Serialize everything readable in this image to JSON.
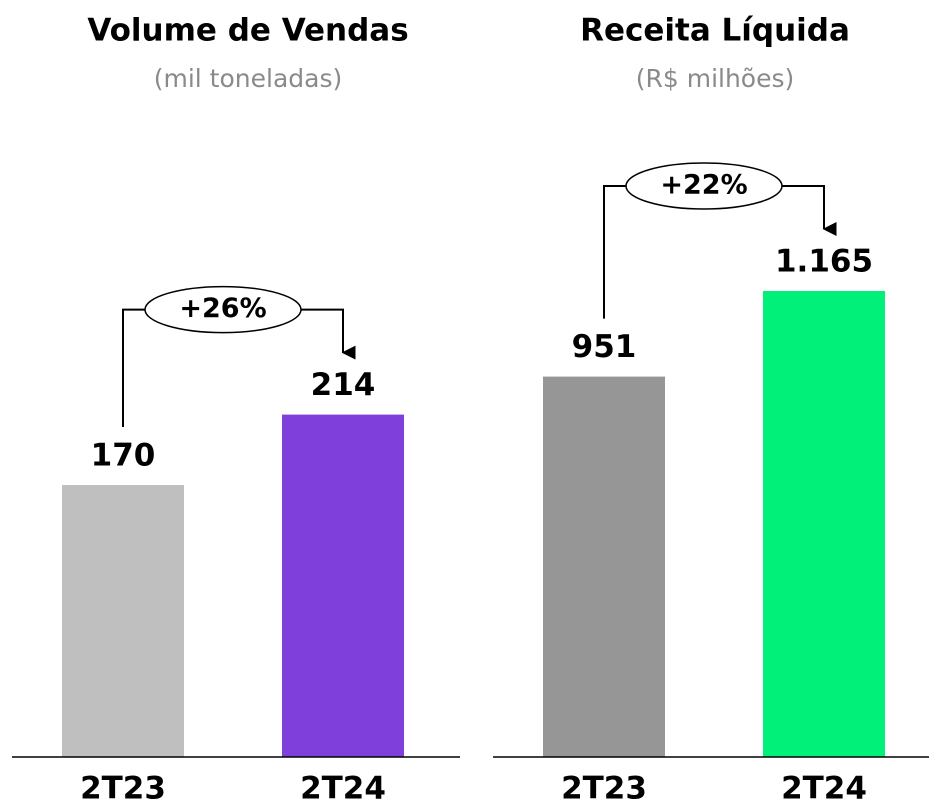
{
  "chart_data": [
    {
      "type": "bar",
      "title": "Volume de Vendas",
      "subtitle": "(mil toneladas)",
      "categories": [
        "2T23",
        "2T24"
      ],
      "values": [
        170,
        214
      ],
      "colors": [
        "#bfbfbf",
        "#7f3fdb"
      ],
      "ylim": [
        0,
        400
      ],
      "annotation": "+26%"
    },
    {
      "type": "bar",
      "title": "Receita Líquida",
      "subtitle": "(R$ milhões)",
      "categories": [
        "2T23",
        "2T24"
      ],
      "values": [
        951,
        1165
      ],
      "value_labels": [
        "951",
        "1.165"
      ],
      "colors": [
        "#969696",
        "#00f07a"
      ],
      "ylim": [
        0,
        1600
      ],
      "annotation": "+22%"
    }
  ]
}
